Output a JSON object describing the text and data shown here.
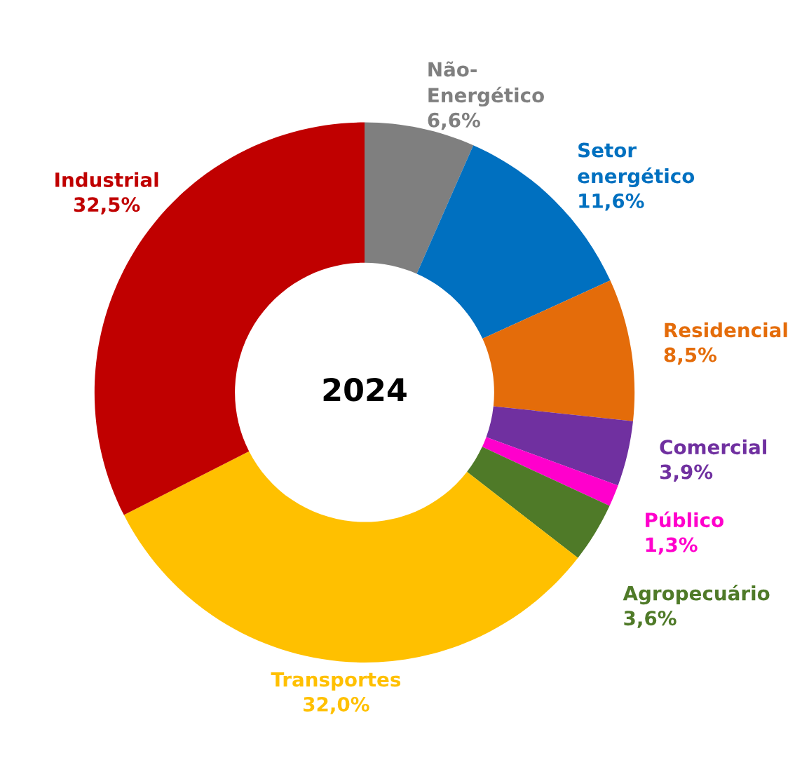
{
  "chart_data": {
    "type": "donut",
    "categories": [
      "Não-\nEnergético",
      "Setor\nenergético",
      "Residencial",
      "Comercial",
      "Público",
      "Agropecuário",
      "Transportes",
      "Industrial"
    ],
    "values": [
      6.6,
      11.6,
      8.5,
      3.9,
      1.3,
      3.6,
      32.0,
      32.5
    ],
    "value_labels": [
      "6,6%",
      "11,6%",
      "8,5%",
      "3,9%",
      "1,3%",
      "3,6%",
      "32,0%",
      "32,5%"
    ],
    "colors": [
      "#7f7f7f",
      "#0070c0",
      "#e46c0a",
      "#7030a0",
      "#ff00cc",
      "#4f7a28",
      "#ffc000",
      "#c00000"
    ],
    "annotations": [
      "2024"
    ],
    "legend": false
  }
}
